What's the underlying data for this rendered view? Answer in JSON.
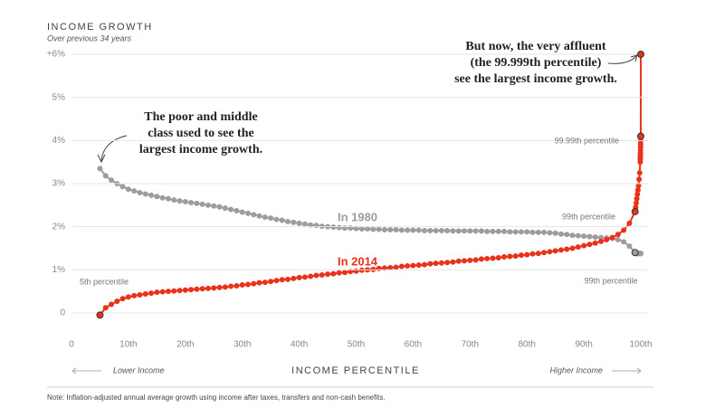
{
  "chart_data": {
    "type": "line",
    "title": "INCOME GROWTH",
    "subtitle": "Over previous 34 years",
    "x_label": "INCOME PERCENTILE",
    "x_left_label": "Lower Income",
    "x_right_label": "Higher Income",
    "note": "Note: Inflation-adjusted annual average growth using income after taxes, transfers and non-cash benefits.",
    "annotations": {
      "poor": [
        "The poor and middle",
        "class used to see the",
        "largest income growth."
      ],
      "affluent": [
        "But now, the very affluent",
        "(the 99.999th percentile)",
        "see the largest income growth."
      ],
      "p5": "5th percentile",
      "p9999": "99.99th percentile",
      "p99_2014": "99th percentile",
      "p99_1980": "99th percentile"
    },
    "x": [
      5,
      6,
      7,
      8,
      9,
      10,
      11,
      12,
      13,
      14,
      15,
      16,
      17,
      18,
      19,
      20,
      21,
      22,
      23,
      24,
      25,
      26,
      27,
      28,
      29,
      30,
      31,
      32,
      33,
      34,
      35,
      36,
      37,
      38,
      39,
      40,
      41,
      42,
      43,
      44,
      45,
      46,
      47,
      48,
      49,
      50,
      51,
      52,
      53,
      54,
      55,
      56,
      57,
      58,
      59,
      60,
      61,
      62,
      63,
      64,
      65,
      66,
      67,
      68,
      69,
      70,
      71,
      72,
      73,
      74,
      75,
      76,
      77,
      78,
      79,
      80,
      81,
      82,
      83,
      84,
      85,
      86,
      87,
      88,
      89,
      90,
      91,
      92,
      93,
      94,
      95,
      96,
      97,
      98,
      99,
      99.1,
      99.2,
      99.3,
      99.4,
      99.5,
      99.6,
      99.7,
      99.8,
      99.9,
      99.91,
      99.92,
      99.93,
      99.94,
      99.95,
      99.96,
      99.97,
      99.98,
      99.99,
      99.999
    ],
    "series": [
      {
        "name": "In 1980",
        "color": "#a39a9e",
        "values": [
          3.35,
          3.18,
          3.08,
          3.0,
          2.93,
          2.87,
          2.83,
          2.79,
          2.76,
          2.73,
          2.7,
          2.67,
          2.65,
          2.62,
          2.6,
          2.58,
          2.56,
          2.54,
          2.52,
          2.5,
          2.48,
          2.46,
          2.43,
          2.4,
          2.37,
          2.34,
          2.31,
          2.28,
          2.25,
          2.22,
          2.2,
          2.17,
          2.15,
          2.12,
          2.1,
          2.08,
          2.06,
          2.04,
          2.03,
          2.01,
          2.0,
          1.99,
          1.98,
          1.97,
          1.97,
          1.96,
          1.95,
          1.95,
          1.94,
          1.94,
          1.93,
          1.93,
          1.93,
          1.92,
          1.92,
          1.92,
          1.92,
          1.91,
          1.91,
          1.91,
          1.91,
          1.91,
          1.9,
          1.9,
          1.9,
          1.9,
          1.9,
          1.9,
          1.89,
          1.89,
          1.89,
          1.89,
          1.88,
          1.88,
          1.88,
          1.88,
          1.87,
          1.87,
          1.87,
          1.86,
          1.85,
          1.83,
          1.82,
          1.8,
          1.79,
          1.78,
          1.77,
          1.76,
          1.75,
          1.74,
          1.73,
          1.7,
          1.65,
          1.55,
          1.4,
          1.38,
          1.38,
          1.38,
          1.38,
          1.38,
          1.38,
          1.38,
          1.38,
          1.38,
          1.38,
          1.38,
          1.38,
          1.38,
          1.38,
          1.38,
          1.38,
          1.38,
          1.38,
          1.38
        ]
      },
      {
        "name": "In 2014",
        "color": "#e8321c",
        "values": [
          -0.05,
          0.12,
          0.2,
          0.27,
          0.33,
          0.37,
          0.4,
          0.42,
          0.44,
          0.46,
          0.48,
          0.49,
          0.5,
          0.51,
          0.52,
          0.53,
          0.54,
          0.55,
          0.56,
          0.57,
          0.58,
          0.59,
          0.6,
          0.62,
          0.63,
          0.65,
          0.66,
          0.68,
          0.7,
          0.71,
          0.73,
          0.75,
          0.77,
          0.78,
          0.8,
          0.82,
          0.83,
          0.85,
          0.87,
          0.88,
          0.9,
          0.91,
          0.93,
          0.94,
          0.96,
          0.97,
          0.99,
          1.0,
          1.01,
          1.03,
          1.04,
          1.05,
          1.06,
          1.08,
          1.09,
          1.1,
          1.11,
          1.12,
          1.14,
          1.15,
          1.16,
          1.17,
          1.18,
          1.2,
          1.21,
          1.22,
          1.23,
          1.25,
          1.26,
          1.27,
          1.28,
          1.3,
          1.31,
          1.32,
          1.34,
          1.35,
          1.37,
          1.38,
          1.4,
          1.42,
          1.44,
          1.46,
          1.48,
          1.5,
          1.53,
          1.56,
          1.59,
          1.62,
          1.66,
          1.7,
          1.75,
          1.82,
          1.92,
          2.08,
          2.35,
          2.45,
          2.55,
          2.65,
          2.75,
          2.85,
          2.95,
          3.1,
          3.25,
          3.5,
          3.55,
          3.6,
          3.65,
          3.7,
          3.78,
          3.85,
          3.92,
          4.0,
          4.1,
          6.0
        ]
      }
    ],
    "xlim": [
      0,
      100
    ],
    "xticks": [
      0,
      {
        "value": 10,
        "label": "10th"
      },
      {
        "value": 20,
        "label": "20th"
      },
      {
        "value": 30,
        "label": "30th"
      },
      {
        "value": 40,
        "label": "40th"
      },
      {
        "value": 50,
        "label": "50th"
      },
      {
        "value": 60,
        "label": "60th"
      },
      {
        "value": 70,
        "label": "70th"
      },
      {
        "value": 80,
        "label": "80th"
      },
      {
        "value": 90,
        "label": "90th"
      },
      {
        "value": 100,
        "label": "100th"
      }
    ],
    "ylim": [
      0,
      6
    ],
    "yticks": [
      0,
      {
        "value": 1,
        "label": "1%"
      },
      {
        "value": 2,
        "label": "2%"
      },
      {
        "value": 3,
        "label": "3%"
      },
      {
        "value": 4,
        "label": "4%"
      },
      {
        "value": 5,
        "label": "5%"
      },
      {
        "value": 6,
        "label": "+6%"
      }
    ],
    "grid": true
  }
}
